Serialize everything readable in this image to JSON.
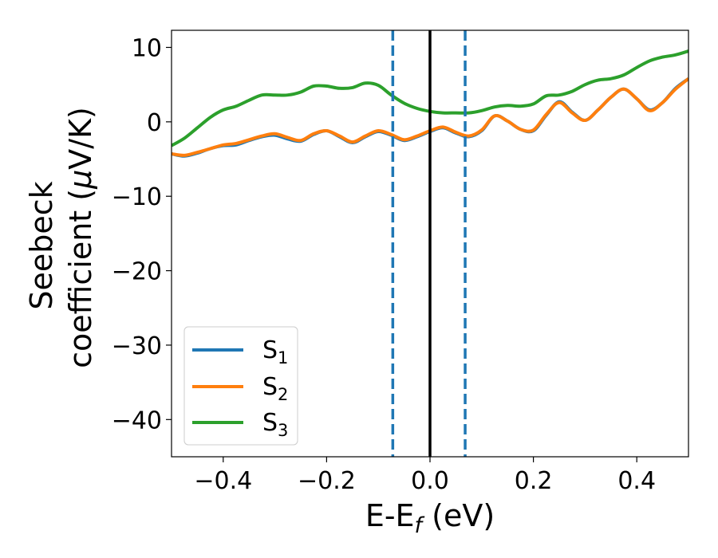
{
  "chart_data": {
    "type": "line",
    "title": "",
    "xlabel": {
      "prefix": "E-E",
      "sub": "f",
      "suffix": " (eV)"
    },
    "ylabel": {
      "line1": "Seebeck",
      "line2_prefix": "coefficient  (",
      "mu": "μ",
      "line2_suffix": "V/K)"
    },
    "xlim": [
      -0.5,
      0.5
    ],
    "ylim": [
      -45,
      12.3
    ],
    "xticks": [
      -0.4,
      -0.2,
      0.0,
      0.2,
      0.4
    ],
    "xtick_labels": [
      "−0.4",
      "−0.2",
      "0.0",
      "0.2",
      "0.4"
    ],
    "yticks": [
      10,
      0,
      -10,
      -20,
      -30,
      -40
    ],
    "ytick_labels": [
      "10",
      "0",
      "−10",
      "−20",
      "−30",
      "−40"
    ],
    "grid": false,
    "legend_position": "lower-left",
    "vertical_lines": [
      {
        "x": -0.072,
        "style": "dashed",
        "color": "#1f77b4"
      },
      {
        "x": 0.0,
        "style": "solid",
        "color": "#000000"
      },
      {
        "x": 0.068,
        "style": "dashed",
        "color": "#1f77b4"
      }
    ],
    "x": [
      -0.5,
      -0.475,
      -0.45,
      -0.425,
      -0.4,
      -0.375,
      -0.35,
      -0.325,
      -0.3,
      -0.275,
      -0.25,
      -0.225,
      -0.2,
      -0.175,
      -0.15,
      -0.125,
      -0.1,
      -0.075,
      -0.05,
      -0.025,
      0.0,
      0.025,
      0.05,
      0.075,
      0.1,
      0.125,
      0.15,
      0.175,
      0.2,
      0.225,
      0.25,
      0.275,
      0.3,
      0.325,
      0.35,
      0.375,
      0.4,
      0.425,
      0.45,
      0.475,
      0.5
    ],
    "series": [
      {
        "name": "S",
        "sub": "1",
        "color": "#1f77b4",
        "values": [
          -4.3,
          -4.6,
          -4.2,
          -3.6,
          -3.2,
          -3.1,
          -2.5,
          -2.0,
          -1.8,
          -2.3,
          -2.6,
          -1.7,
          -1.2,
          -2.0,
          -2.8,
          -2.0,
          -1.3,
          -1.8,
          -2.5,
          -2.0,
          -1.3,
          -0.8,
          -1.5,
          -2.0,
          -1.2,
          0.8,
          0.1,
          -1.0,
          -1.2,
          0.9,
          2.7,
          1.3,
          0.2,
          1.6,
          3.3,
          4.4,
          3.1,
          1.6,
          2.6,
          4.5,
          5.8
        ]
      },
      {
        "name": "S",
        "sub": "2",
        "color": "#ff7f0e",
        "values": [
          -4.3,
          -4.5,
          -4.1,
          -3.6,
          -3.1,
          -2.9,
          -2.4,
          -1.9,
          -1.6,
          -2.1,
          -2.5,
          -1.6,
          -1.2,
          -1.9,
          -2.7,
          -1.9,
          -1.2,
          -1.7,
          -2.4,
          -1.9,
          -1.2,
          -0.7,
          -1.4,
          -1.9,
          -1.1,
          0.8,
          0.1,
          -1.0,
          -1.1,
          1.0,
          2.6,
          1.2,
          0.2,
          1.6,
          3.3,
          4.4,
          3.1,
          1.5,
          2.6,
          4.4,
          5.8
        ]
      },
      {
        "name": "S",
        "sub": "3",
        "color": "#2ca02c",
        "values": [
          -3.2,
          -2.2,
          -0.8,
          0.6,
          1.6,
          2.1,
          2.9,
          3.6,
          3.6,
          3.6,
          4.0,
          4.8,
          4.8,
          4.5,
          4.6,
          5.2,
          4.9,
          3.6,
          2.5,
          1.8,
          1.4,
          1.2,
          1.2,
          1.2,
          1.5,
          2.0,
          2.2,
          2.1,
          2.4,
          3.5,
          3.6,
          4.1,
          5.0,
          5.6,
          5.8,
          6.3,
          7.3,
          8.2,
          8.7,
          9.0,
          9.5
        ]
      }
    ]
  }
}
